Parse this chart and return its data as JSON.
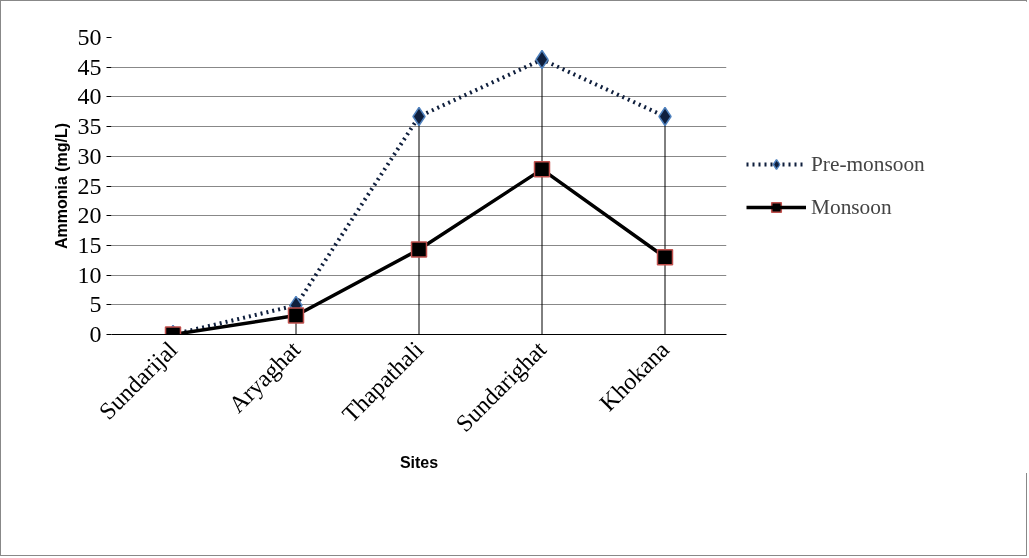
{
  "chart_data": {
    "type": "line",
    "xlabel": "Sites",
    "ylabel": "Ammonia (mg/L)",
    "categories": [
      "Sundarijal",
      "Aryaghat",
      "Thapathali",
      "Sundarighat",
      "Khokana"
    ],
    "series": [
      {
        "name": "Pre-monsoon",
        "color": "#0f1f3d",
        "marker": "diamond",
        "line_style": "dotted",
        "values": [
          0,
          4.9,
          36.7,
          46.3,
          36.7
        ],
        "errors": [
          null,
          [
            0,
            4.9
          ],
          [
            0,
            36.7
          ],
          [
            0,
            46.3
          ],
          [
            0,
            36.7
          ]
        ]
      },
      {
        "name": "Monsoon",
        "color": "#000000",
        "marker": "square",
        "line_style": "solid",
        "values": [
          0,
          3.2,
          14.3,
          27.8,
          13.0
        ]
      }
    ],
    "ylim": [
      0,
      50
    ],
    "yticks": [
      0,
      5,
      10,
      15,
      20,
      25,
      30,
      35,
      40,
      45,
      50
    ],
    "grid": "y",
    "legend": "right"
  }
}
